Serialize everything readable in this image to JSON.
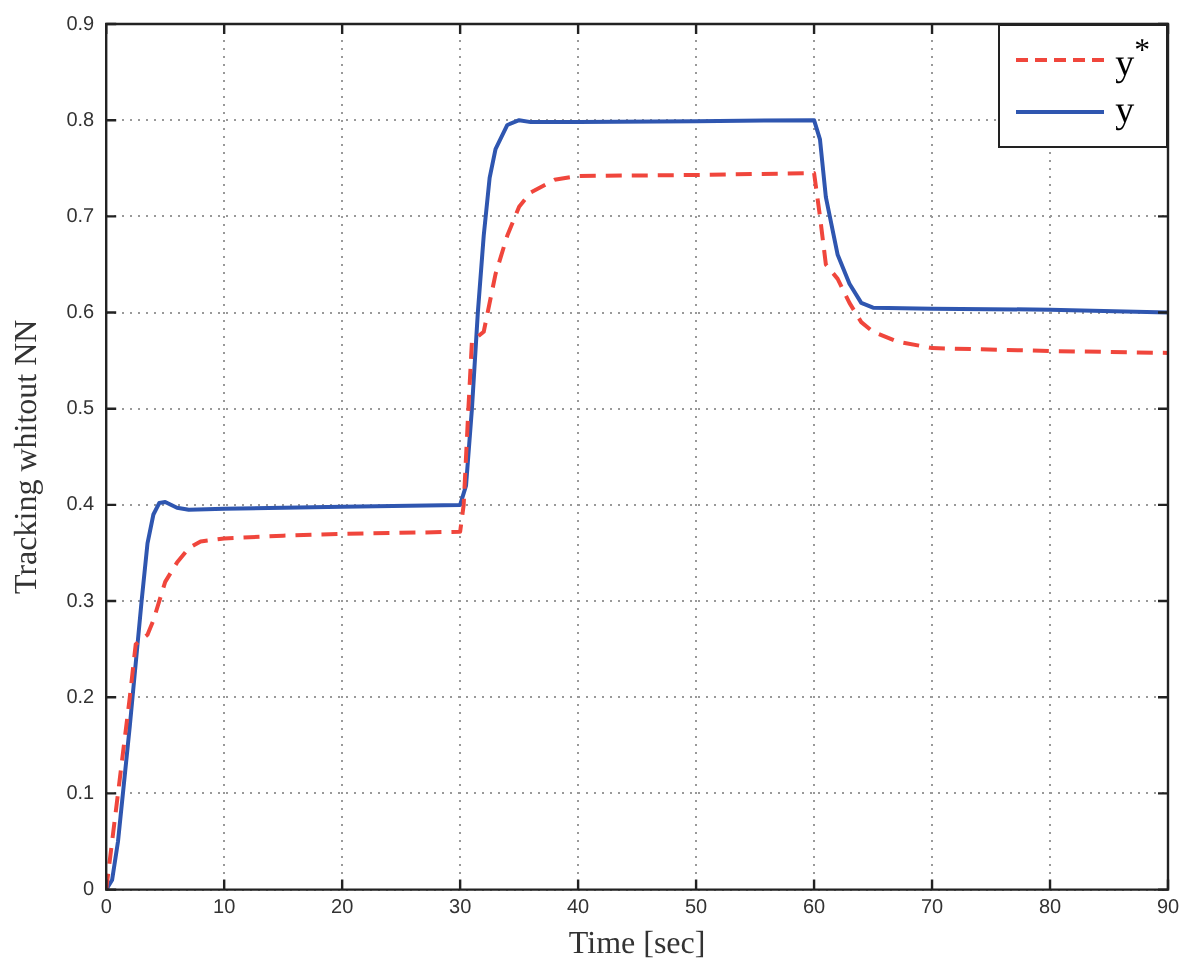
{
  "chart_data": {
    "type": "line",
    "xlabel": "Time [sec]",
    "ylabel": "Tracking whitout NN",
    "xlim": [
      0,
      90
    ],
    "xticks": [
      0,
      10,
      20,
      30,
      40,
      50,
      60,
      70,
      80,
      90
    ],
    "ylim": [
      0,
      0.9
    ],
    "yticks": [
      0,
      0.1,
      0.2,
      0.3,
      0.4,
      0.5,
      0.6,
      0.7,
      0.8,
      0.9
    ],
    "grid": true,
    "legend": "top right",
    "marker": "none",
    "series": [
      {
        "name": "y$^{*}$",
        "color": "#f0463c",
        "line_style": "dashed",
        "x": [
          0,
          0.5,
          1,
          1.5,
          2,
          2.5,
          3,
          3.5,
          4,
          5,
          6,
          7,
          8,
          10,
          15,
          20,
          30,
          30.3,
          30.7,
          31,
          32,
          33,
          34,
          35,
          36,
          38,
          40,
          50,
          60,
          60.5,
          61,
          62,
          63,
          64,
          65,
          67,
          70,
          80,
          90
        ],
        "values": [
          0,
          0.05,
          0.1,
          0.15,
          0.2,
          0.255,
          0.26,
          0.265,
          0.28,
          0.32,
          0.34,
          0.355,
          0.362,
          0.365,
          0.368,
          0.37,
          0.372,
          0.4,
          0.5,
          0.57,
          0.58,
          0.64,
          0.68,
          0.71,
          0.725,
          0.738,
          0.742,
          0.743,
          0.745,
          0.7,
          0.65,
          0.635,
          0.61,
          0.59,
          0.58,
          0.57,
          0.563,
          0.56,
          0.558
        ]
      },
      {
        "name": "y",
        "color": "#2f56b0",
        "line_style": "solid",
        "x": [
          0,
          0.5,
          1,
          2,
          3,
          3.5,
          4,
          4.5,
          5,
          6,
          7,
          10,
          20,
          30,
          30.5,
          31,
          31.5,
          32,
          32.5,
          33,
          34,
          35,
          36,
          40,
          50,
          60,
          60.5,
          61,
          62,
          63,
          64,
          65,
          70,
          80,
          90
        ],
        "values": [
          0,
          0.01,
          0.05,
          0.17,
          0.3,
          0.36,
          0.39,
          0.402,
          0.403,
          0.397,
          0.395,
          0.396,
          0.398,
          0.4,
          0.42,
          0.5,
          0.6,
          0.68,
          0.74,
          0.77,
          0.795,
          0.8,
          0.798,
          0.798,
          0.799,
          0.8,
          0.78,
          0.72,
          0.66,
          0.63,
          0.61,
          0.605,
          0.604,
          0.603,
          0.6
        ]
      }
    ]
  }
}
